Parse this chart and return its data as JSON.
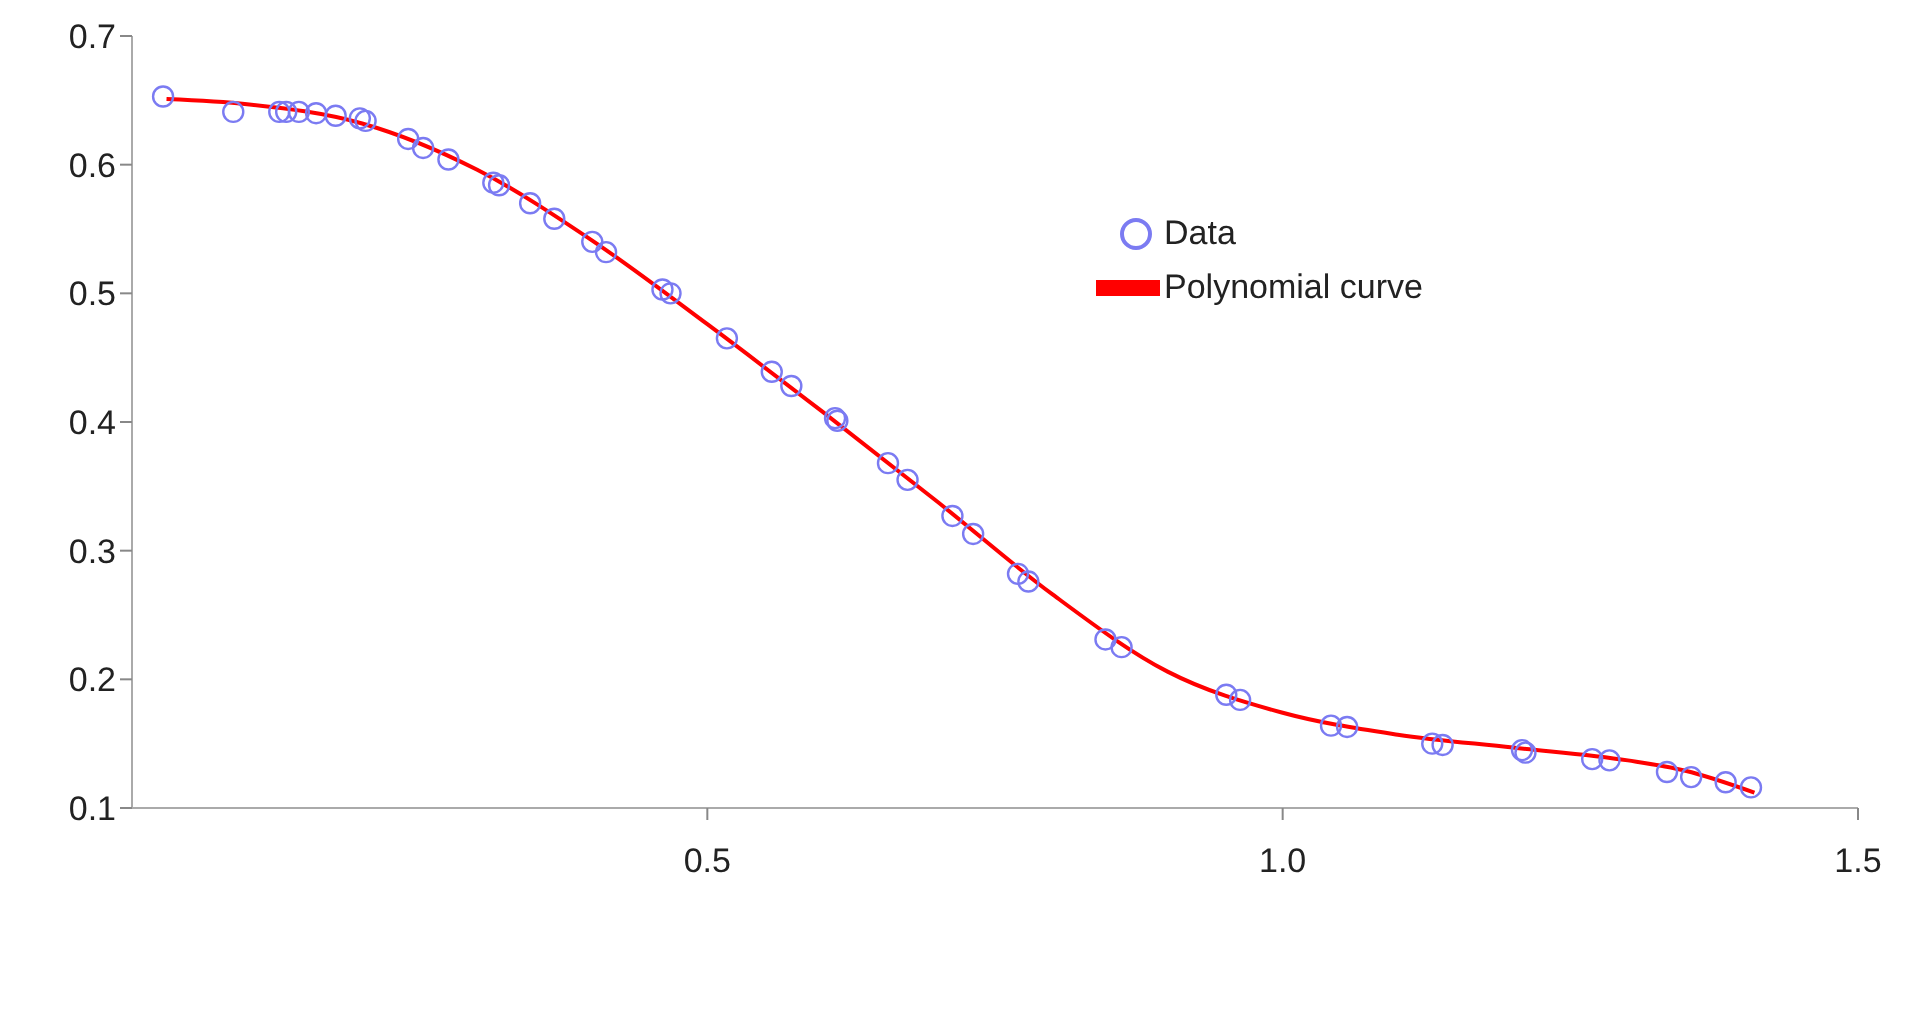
{
  "chart_data": {
    "type": "scatter",
    "xlim": [
      0,
      1.5
    ],
    "xticks": [
      0.5,
      {
        "value": 1,
        "label": "1.0"
      },
      1.5
    ],
    "ylim": [
      0.1,
      0.7
    ],
    "yticks": [
      0.1,
      0.2,
      0.3,
      0.4,
      0.5,
      0.6,
      0.7
    ],
    "grid": false,
    "legend": "top right",
    "series": [
      {
        "name": "Data",
        "marker": "circle",
        "color": "#7b7bf2",
        "x": [
          0.027,
          0.088,
          0.128,
          0.134,
          0.145,
          0.16,
          0.177,
          0.198,
          0.203,
          0.24,
          0.253,
          0.275,
          0.314,
          0.319,
          0.346,
          0.367,
          0.4,
          0.412,
          0.461,
          0.468,
          0.517,
          0.556,
          0.573,
          0.611,
          0.613,
          0.657,
          0.674,
          0.713,
          0.731,
          0.77,
          0.779,
          0.846,
          0.86,
          0.951,
          0.963,
          1.042,
          1.056,
          1.13,
          1.139,
          1.208,
          1.211,
          1.269,
          1.284,
          1.334,
          1.355,
          1.385,
          1.407
        ],
        "values": [
          0.653,
          0.641,
          0.641,
          0.641,
          0.641,
          0.64,
          0.638,
          0.636,
          0.634,
          0.62,
          0.613,
          0.604,
          0.586,
          0.584,
          0.57,
          0.558,
          0.54,
          0.532,
          0.503,
          0.5,
          0.465,
          0.439,
          0.428,
          0.403,
          0.401,
          0.368,
          0.355,
          0.327,
          0.313,
          0.282,
          0.276,
          0.231,
          0.225,
          0.188,
          0.184,
          0.164,
          0.163,
          0.15,
          0.149,
          0.145,
          0.143,
          0.138,
          0.137,
          0.128,
          0.124,
          0.12,
          0.116
        ]
      },
      {
        "name": "Polynomial curve",
        "type": "line",
        "marker": "none",
        "line_style": "solid",
        "color": "#ff0000",
        "x": [
          0.03,
          0.1,
          0.2,
          0.3,
          0.4,
          0.5,
          0.6,
          0.7,
          0.8,
          0.9,
          1.0,
          1.1,
          1.2,
          1.3,
          1.35,
          1.41
        ],
        "values": [
          0.651,
          0.647,
          0.632,
          0.596,
          0.541,
          0.476,
          0.408,
          0.338,
          0.266,
          0.206,
          0.174,
          0.157,
          0.147,
          0.137,
          0.129,
          0.112
        ]
      }
    ]
  }
}
